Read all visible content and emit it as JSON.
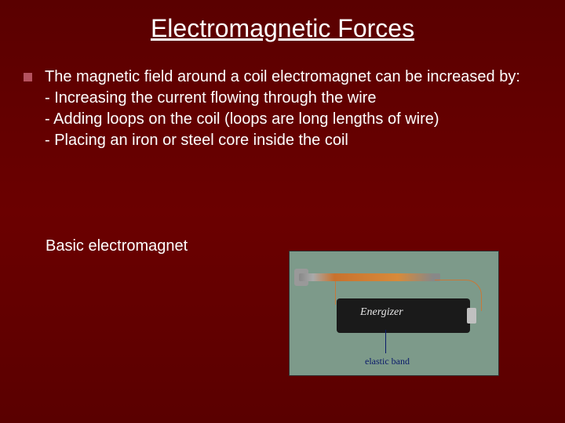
{
  "title": "Electromagnetic Forces",
  "bullet": {
    "intro": "The magnetic field around a coil electromagnet can be increased by:",
    "line1": "- Increasing the current flowing through the wire",
    "line2": "- Adding loops on the coil (loops are long lengths of wire)",
    "line3": "- Placing an iron or steel core inside the coil"
  },
  "caption": "Basic electromagnet",
  "figure": {
    "battery_label": "Energizer",
    "elastic_label": "elastic band"
  },
  "colors": {
    "background_top": "#5a0000",
    "background_mid": "#6b0000",
    "text": "#ffffff",
    "bullet_marker": "#b5525f",
    "figure_bg": "#7d9a8a"
  }
}
